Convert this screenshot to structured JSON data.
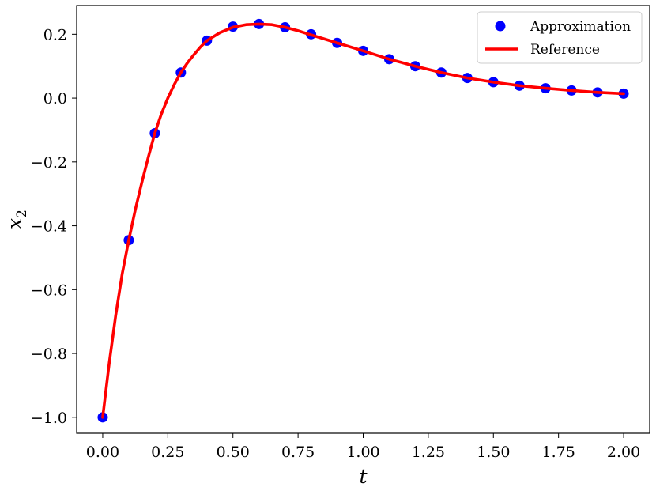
{
  "chart_data": {
    "type": "line",
    "xlabel": "t",
    "ylabel_base": "x",
    "ylabel_sub": "2",
    "xlim": [
      -0.1,
      2.1
    ],
    "ylim": [
      -1.05,
      0.29
    ],
    "xticks": [
      0.0,
      0.25,
      0.5,
      0.75,
      1.0,
      1.25,
      1.5,
      1.75,
      2.0
    ],
    "xtick_labels": [
      "0.00",
      "0.25",
      "0.50",
      "0.75",
      "1.00",
      "1.25",
      "1.50",
      "1.75",
      "2.00"
    ],
    "yticks": [
      -1.0,
      -0.8,
      -0.6,
      -0.4,
      -0.2,
      0.0,
      0.2
    ],
    "ytick_labels": [
      "−1.0",
      "−0.8",
      "−0.6",
      "−0.4",
      "−0.2",
      "0.0",
      "0.2"
    ],
    "grid": false,
    "legend_position": "top-right",
    "series": [
      {
        "name": "Approximation",
        "kind": "scatter",
        "color": "#0000ff",
        "x": [
          0.0,
          0.1,
          0.2,
          0.3,
          0.4,
          0.5,
          0.6,
          0.7,
          0.8,
          0.9,
          1.0,
          1.1,
          1.2,
          1.3,
          1.4,
          1.5,
          1.6,
          1.7,
          1.8,
          1.9,
          2.0
        ],
        "y": [
          -1.0,
          -0.445,
          -0.11,
          0.08,
          0.18,
          0.224,
          0.232,
          0.222,
          0.2,
          0.173,
          0.148,
          0.122,
          0.1,
          0.08,
          0.063,
          0.05,
          0.039,
          0.031,
          0.024,
          0.018,
          0.014
        ]
      },
      {
        "name": "Reference",
        "kind": "line",
        "color": "#ff0000",
        "x": [
          0.0,
          0.025,
          0.05,
          0.075,
          0.1,
          0.125,
          0.15,
          0.175,
          0.2,
          0.225,
          0.25,
          0.275,
          0.3,
          0.325,
          0.35,
          0.375,
          0.4,
          0.45,
          0.5,
          0.55,
          0.6,
          0.65,
          0.7,
          0.75,
          0.8,
          0.9,
          1.0,
          1.1,
          1.2,
          1.3,
          1.4,
          1.5,
          1.6,
          1.7,
          1.8,
          1.9,
          2.0
        ],
        "y": [
          -1.0,
          -0.83,
          -0.68,
          -0.55,
          -0.445,
          -0.35,
          -0.265,
          -0.185,
          -0.11,
          -0.05,
          0.0,
          0.043,
          0.08,
          0.11,
          0.136,
          0.16,
          0.18,
          0.205,
          0.222,
          0.23,
          0.232,
          0.23,
          0.222,
          0.211,
          0.198,
          0.173,
          0.148,
          0.122,
          0.1,
          0.08,
          0.063,
          0.05,
          0.039,
          0.031,
          0.024,
          0.018,
          0.014
        ]
      }
    ]
  }
}
